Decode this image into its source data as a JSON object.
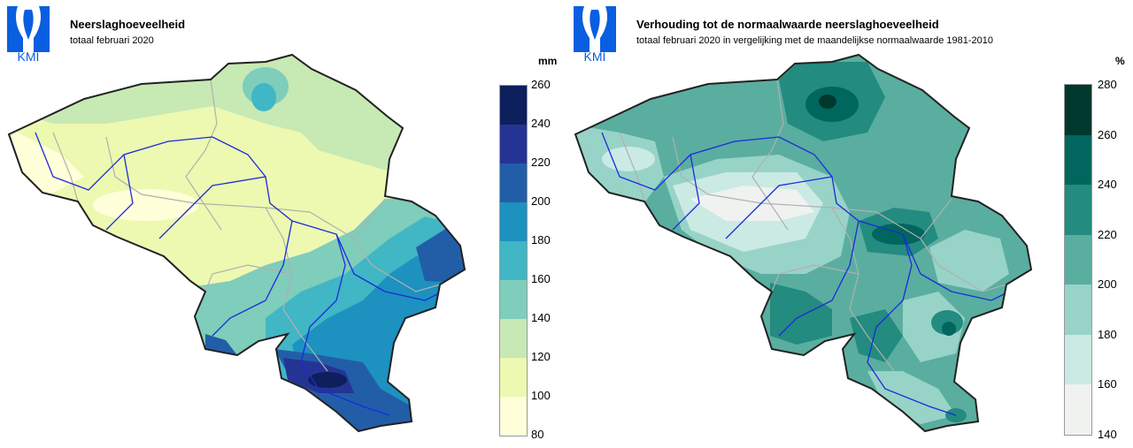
{
  "logo_text": "KMI",
  "colors": {
    "brand": "#0a5ee0",
    "border": "#222222",
    "rivers": "#1a2bdc",
    "provinces": "#b0b0b0"
  },
  "left": {
    "title": "Neerslaghoeveelheid",
    "subtitle": "totaal februari 2020",
    "unit": "mm",
    "legend": {
      "ticks": [
        "260",
        "240",
        "220",
        "200",
        "180",
        "160",
        "140",
        "120",
        "100",
        "80"
      ],
      "colors": [
        "#0d1f5c",
        "#253494",
        "#225ea8",
        "#1d91c0",
        "#41b6c4",
        "#7fcdbb",
        "#c7e9b4",
        "#edf8b1",
        "#ffffd9"
      ]
    }
  },
  "right": {
    "title": "Verhouding tot de normaalwaarde neerslaghoeveelheid",
    "subtitle": "totaal februari 2020 in vergelijking met de maandelijkse normaalwaarde 1981-2010",
    "unit": "%",
    "legend": {
      "ticks": [
        "280",
        "260",
        "240",
        "220",
        "200",
        "180",
        "160",
        "140"
      ],
      "colors": [
        "#01382e",
        "#01665e",
        "#238b7f",
        "#5aae9f",
        "#98d3c8",
        "#cbeae4",
        "#f0f2f0"
      ]
    }
  }
}
